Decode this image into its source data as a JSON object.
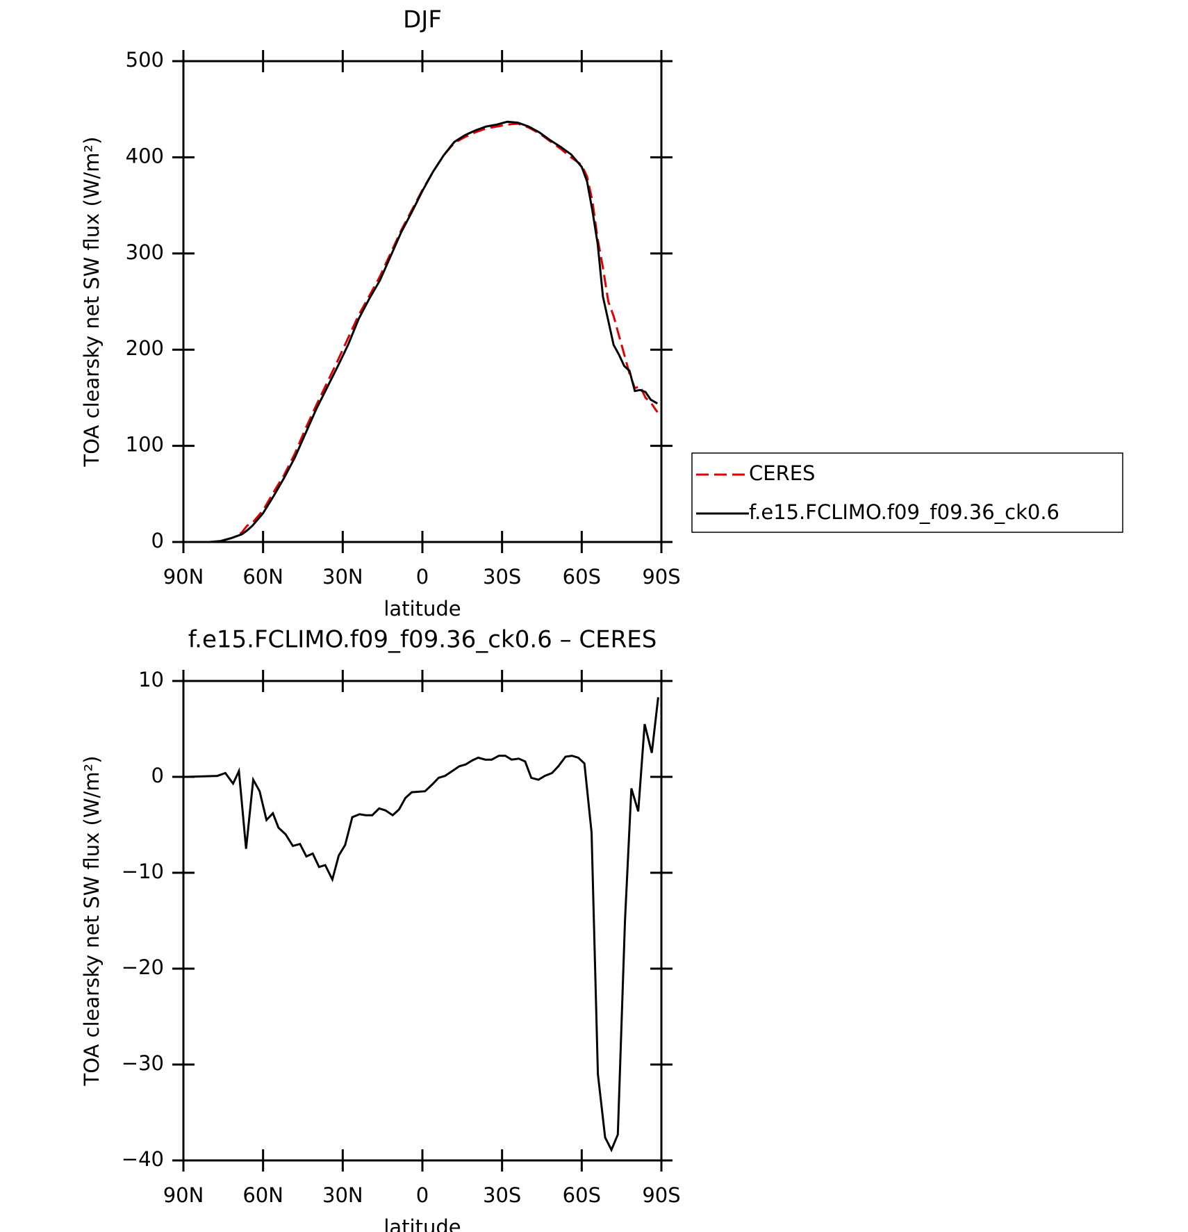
{
  "chart_data": [
    {
      "type": "line",
      "title": "DJF",
      "xlabel": "latitude",
      "ylabel": "TOA clearsky net SW flux (W/m²)",
      "x": [
        88.5,
        84,
        80,
        76,
        72,
        70,
        68,
        66,
        64,
        60,
        56,
        52,
        48,
        44,
        40,
        36,
        32,
        28,
        24,
        20,
        16,
        12,
        8,
        4,
        0,
        -4,
        -8,
        -12,
        -16,
        -20,
        -24,
        -28,
        -32,
        -36,
        -40,
        -44,
        -48,
        -52,
        -56,
        -60,
        -62,
        -64,
        -66,
        -68,
        -70,
        -72,
        -74,
        -76,
        -78,
        -80,
        -82,
        -84,
        -86,
        -88.5
      ],
      "series": [
        {
          "name": "CERES",
          "color": "#e00000",
          "style": "dashed",
          "values": [
            0,
            0,
            0,
            1,
            4,
            6,
            10,
            17,
            20,
            33,
            52,
            70,
            92,
            118,
            142,
            165,
            188,
            212,
            236,
            256,
            276,
            300,
            324,
            345,
            366,
            385,
            402,
            415,
            421,
            426,
            430,
            432,
            434,
            435,
            431,
            425,
            417,
            409,
            400,
            392,
            380,
            355,
            315,
            285,
            250,
            235,
            215,
            195,
            175,
            160,
            162,
            150,
            145,
            135
          ]
        },
        {
          "name": "f.e15.FCLIMO.f09_f09.36_ck0.6",
          "color": "#000000",
          "style": "solid",
          "values": [
            0,
            0,
            0,
            1,
            4,
            6,
            8,
            12,
            17,
            30,
            48,
            67,
            88,
            113,
            138,
            160,
            182,
            205,
            232,
            253,
            272,
            297,
            322,
            343,
            365,
            385,
            402,
            416,
            423,
            428,
            432,
            434,
            437,
            436,
            432,
            426,
            418,
            411,
            403,
            390,
            375,
            345,
            310,
            255,
            230,
            205,
            195,
            183,
            178,
            157,
            158,
            156,
            148,
            144
          ]
        }
      ],
      "xlim": [
        90,
        -90
      ],
      "xticks": [
        {
          "value": 90,
          "label": "90N"
        },
        {
          "value": 60,
          "label": "60N"
        },
        {
          "value": 30,
          "label": "30N"
        },
        0,
        {
          "value": -30,
          "label": "30S"
        },
        {
          "value": -60,
          "label": "60S"
        },
        {
          "value": -90,
          "label": "90S"
        }
      ],
      "ylim": [
        0,
        500
      ],
      "yticks": [
        0,
        100,
        200,
        300,
        400,
        500
      ],
      "legend": "right"
    },
    {
      "type": "line",
      "title": "f.e15.FCLIMO.f09_f09.36_ck0.6 – CERES",
      "xlabel": "latitude",
      "ylabel": "TOA clearsky net SW flux (W/m²)",
      "x": [
        88.8,
        77.2,
        74.2,
        71.3,
        69.1,
        66.4,
        63.7,
        61.3,
        58.7,
        56.3,
        54.2,
        51.5,
        48.8,
        46.1,
        43.7,
        41.3,
        38.9,
        36.6,
        33.9,
        31.5,
        29.1,
        26.4,
        23.7,
        21.3,
        18.9,
        16.3,
        13.9,
        11.2,
        8.8,
        6.4,
        4.0,
        -1.0,
        -3.7,
        -6.1,
        -8.5,
        -11.2,
        -13.9,
        -16.3,
        -18.7,
        -21.0,
        -23.7,
        -26.1,
        -28.8,
        -31.2,
        -33.6,
        -36.3,
        -38.7,
        -41.0,
        -43.7,
        -46.1,
        -48.8,
        -51.2,
        -53.9,
        -56.3,
        -58.7,
        -61.0,
        -63.7,
        -66.1,
        -68.8,
        -71.2,
        -73.6,
        -76.3,
        -78.7,
        -81.3,
        -83.7,
        -86.4,
        -88.8
      ],
      "values": [
        0,
        0.1,
        0.4,
        -0.7,
        0.6,
        -7.5,
        -0.3,
        -1.5,
        -4.5,
        -3.8,
        -5.3,
        -6,
        -7.2,
        -7,
        -8.3,
        -8,
        -9.4,
        -9.2,
        -10.7,
        -8.2,
        -7.1,
        -4.2,
        -3.9,
        -4,
        -4,
        -3.3,
        -3.5,
        -4,
        -3.4,
        -2.2,
        -1.6,
        -1.5,
        -0.8,
        -0.1,
        0.1,
        0.6,
        1.1,
        1.3,
        1.7,
        2,
        1.8,
        1.8,
        2.2,
        2.2,
        1.8,
        1.9,
        1.6,
        -0.1,
        -0.3,
        0.1,
        0.4,
        1.1,
        2.1,
        2.2,
        2,
        1.4,
        -5.8,
        -31,
        -37.6,
        -38.9,
        -37.3,
        -15,
        -1.2,
        -3.6,
        5.5,
        2.5,
        8.3
      ],
      "color": "#000000",
      "xlim": [
        90,
        -90
      ],
      "xticks": [
        {
          "value": 90,
          "label": "90N"
        },
        {
          "value": 60,
          "label": "60N"
        },
        {
          "value": 30,
          "label": "30N"
        },
        0,
        {
          "value": -30,
          "label": "30S"
        },
        {
          "value": -60,
          "label": "60S"
        },
        {
          "value": -90,
          "label": "90S"
        }
      ],
      "ylim": [
        -40,
        10
      ],
      "yticks": [
        {
          "value": -40,
          "label": "−40"
        },
        {
          "value": -30,
          "label": "−30"
        },
        {
          "value": -20,
          "label": "−20"
        },
        {
          "value": -10,
          "label": "−10"
        },
        0,
        10
      ]
    }
  ]
}
